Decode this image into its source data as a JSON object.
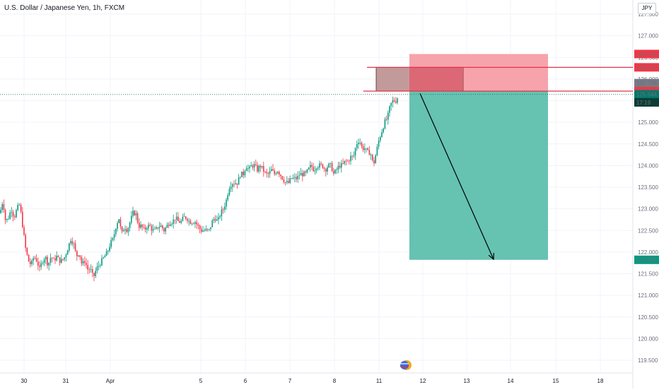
{
  "header": {
    "title": "U.S. Dollar / Japanese Yen, 1h, FXCM",
    "currency": "JPY"
  },
  "chart_data": {
    "type": "candlestick",
    "symbol": "USD/JPY",
    "timeframe": "1h",
    "source": "FXCM",
    "y_axis": {
      "ticks": [
        "127.500",
        "127.000",
        "126.500",
        "126.000",
        "125.500",
        "125.000",
        "124.500",
        "124.000",
        "123.500",
        "123.000",
        "122.500",
        "122.000",
        "121.500",
        "121.000",
        "120.500",
        "120.000",
        "119.500"
      ],
      "ylim": [
        119.2,
        127.7
      ]
    },
    "x_axis": {
      "ticks": [
        "30",
        "31",
        "Apr",
        "5",
        "6",
        "7",
        "8",
        "11",
        "12",
        "13",
        "14",
        "15",
        "18"
      ]
    },
    "price_labels": [
      {
        "text": "126.578",
        "price": 126.578,
        "color": "#f23645",
        "text_color": "#ffffff"
      },
      {
        "text": "126.270",
        "price": 126.27,
        "color": "#f23645",
        "text_color": "#ffffff"
      },
      {
        "text": "125.726",
        "price": 125.905,
        "color": "#787b86",
        "text_color": "#ffffff"
      },
      {
        "text": "125.720",
        "price": 125.72,
        "color": "#f23645",
        "text_color": "#ffffff"
      },
      {
        "text": "125.644",
        "price": 125.644,
        "color": "#00796b",
        "text_color": "#ffffff"
      },
      {
        "text": "17:19",
        "price": 125.46,
        "color": "#0b3d35",
        "text_color": "#ffffff"
      },
      {
        "text": "121.821",
        "price": 121.821,
        "color": "#089981",
        "text_color": "#ffffff"
      }
    ],
    "current_price": 125.644,
    "position": {
      "type": "short",
      "entry": 125.72,
      "stop_loss": 126.578,
      "take_profit": 121.821,
      "entry_zone": [
        125.72,
        126.27
      ],
      "resistance_lines": [
        126.27,
        125.72
      ]
    },
    "colors": {
      "up": "#089981",
      "down": "#f23645",
      "stop_zone": "#f7a3ab",
      "profit_zone": "#66c2b1",
      "entry_box": "#bc8f8f"
    },
    "series_anchors": [
      [
        0,
        122.9
      ],
      [
        4,
        123.2
      ],
      [
        8,
        122.7
      ],
      [
        12,
        122.8
      ],
      [
        16,
        123.0
      ],
      [
        20,
        122.8
      ],
      [
        24,
        123.0
      ],
      [
        28,
        123.1
      ],
      [
        32,
        122.6
      ],
      [
        36,
        122.1
      ],
      [
        40,
        121.8
      ],
      [
        44,
        121.7
      ],
      [
        48,
        121.9
      ],
      [
        52,
        121.8
      ],
      [
        56,
        121.6
      ],
      [
        60,
        121.8
      ],
      [
        64,
        121.9
      ],
      [
        68,
        121.7
      ],
      [
        72,
        121.9
      ],
      [
        76,
        121.8
      ],
      [
        80,
        121.9
      ],
      [
        84,
        121.8
      ],
      [
        88,
        121.8
      ],
      [
        92,
        121.9
      ],
      [
        96,
        122.1
      ],
      [
        100,
        122.3
      ],
      [
        104,
        122.2
      ],
      [
        108,
        121.9
      ],
      [
        112,
        122.0
      ],
      [
        116,
        121.7
      ],
      [
        120,
        121.8
      ],
      [
        124,
        121.6
      ],
      [
        128,
        121.6
      ],
      [
        132,
        121.4
      ],
      [
        136,
        121.6
      ],
      [
        140,
        121.7
      ],
      [
        144,
        121.8
      ],
      [
        148,
        121.9
      ],
      [
        152,
        122.0
      ],
      [
        156,
        122.2
      ],
      [
        160,
        122.3
      ],
      [
        164,
        122.6
      ],
      [
        168,
        122.8
      ],
      [
        172,
        122.4
      ],
      [
        176,
        122.6
      ],
      [
        180,
        122.5
      ],
      [
        184,
        122.7
      ],
      [
        188,
        122.9
      ],
      [
        192,
        122.9
      ],
      [
        196,
        122.6
      ],
      [
        200,
        122.6
      ],
      [
        204,
        122.5
      ],
      [
        208,
        122.6
      ],
      [
        212,
        122.6
      ],
      [
        216,
        122.5
      ],
      [
        220,
        122.5
      ],
      [
        224,
        122.6
      ],
      [
        228,
        122.6
      ],
      [
        232,
        122.5
      ],
      [
        236,
        122.6
      ],
      [
        240,
        122.7
      ],
      [
        244,
        122.7
      ],
      [
        248,
        122.8
      ],
      [
        252,
        122.7
      ],
      [
        256,
        122.7
      ],
      [
        260,
        122.8
      ],
      [
        264,
        122.8
      ],
      [
        268,
        122.7
      ],
      [
        272,
        122.7
      ],
      [
        276,
        122.7
      ],
      [
        280,
        122.6
      ],
      [
        284,
        122.5
      ],
      [
        288,
        122.5
      ],
      [
        292,
        122.5
      ],
      [
        296,
        122.5
      ],
      [
        300,
        122.7
      ],
      [
        304,
        122.8
      ],
      [
        308,
        122.7
      ],
      [
        312,
        122.9
      ],
      [
        316,
        123.0
      ],
      [
        320,
        123.2
      ],
      [
        324,
        123.5
      ],
      [
        328,
        123.6
      ],
      [
        332,
        123.6
      ],
      [
        336,
        123.6
      ],
      [
        340,
        123.8
      ],
      [
        344,
        123.8
      ],
      [
        348,
        124.0
      ],
      [
        352,
        123.9
      ],
      [
        356,
        124.0
      ],
      [
        360,
        124.0
      ],
      [
        364,
        123.9
      ],
      [
        368,
        124.0
      ],
      [
        372,
        123.9
      ],
      [
        376,
        123.8
      ],
      [
        380,
        123.8
      ],
      [
        384,
        123.9
      ],
      [
        388,
        123.8
      ],
      [
        392,
        123.9
      ],
      [
        396,
        123.8
      ],
      [
        400,
        123.7
      ],
      [
        404,
        123.6
      ],
      [
        408,
        123.6
      ],
      [
        412,
        123.7
      ],
      [
        416,
        123.7
      ],
      [
        420,
        123.7
      ],
      [
        424,
        123.8
      ],
      [
        428,
        123.8
      ],
      [
        432,
        123.8
      ],
      [
        436,
        123.9
      ],
      [
        440,
        124.0
      ],
      [
        444,
        123.9
      ],
      [
        448,
        124.0
      ],
      [
        452,
        124.0
      ],
      [
        456,
        124.0
      ],
      [
        460,
        123.9
      ],
      [
        464,
        124.0
      ],
      [
        468,
        124.0
      ],
      [
        472,
        123.8
      ],
      [
        476,
        123.9
      ],
      [
        480,
        124.0
      ],
      [
        484,
        124.0
      ],
      [
        488,
        124.1
      ],
      [
        492,
        124.1
      ],
      [
        496,
        124.2
      ],
      [
        500,
        124.2
      ],
      [
        504,
        124.5
      ],
      [
        508,
        124.6
      ],
      [
        512,
        124.4
      ],
      [
        516,
        124.4
      ],
      [
        520,
        124.3
      ],
      [
        524,
        124.3
      ],
      [
        528,
        124.0
      ],
      [
        532,
        124.3
      ],
      [
        536,
        124.6
      ],
      [
        540,
        124.8
      ],
      [
        544,
        125.0
      ],
      [
        548,
        125.1
      ],
      [
        552,
        125.4
      ],
      [
        556,
        125.5
      ],
      [
        560,
        125.5
      ],
      [
        564,
        125.64
      ]
    ],
    "arrow_annotation": {
      "from_price": 125.7,
      "to_price": 121.8
    }
  }
}
